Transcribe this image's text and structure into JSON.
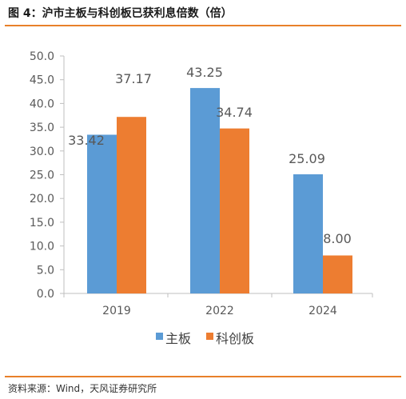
{
  "figure": {
    "title": "图 4：沪市主板与科创板已获利息倍数（倍）",
    "source": "资料来源：Wind，天风证券研究所",
    "accent_color": "#e8802a"
  },
  "chart_data": {
    "type": "bar",
    "categories": [
      "2019",
      "2022",
      "2024"
    ],
    "series": [
      {
        "name": "主板",
        "color": "#5b9bd5",
        "values": [
          33.42,
          43.25,
          25.09
        ]
      },
      {
        "name": "科创板",
        "color": "#ed7d31",
        "values": [
          37.17,
          34.74,
          8.0
        ]
      }
    ],
    "data_labels": [
      [
        "33.42",
        "43.25",
        "25.09"
      ],
      [
        "37.17",
        "34.74",
        "8.00"
      ]
    ],
    "ylim": [
      0,
      50
    ],
    "yticks": [
      "0.0",
      "5.0",
      "10.0",
      "15.0",
      "20.0",
      "25.0",
      "30.0",
      "35.0",
      "40.0",
      "45.0",
      "50.0"
    ],
    "grid": false,
    "legend_position": "bottom"
  }
}
